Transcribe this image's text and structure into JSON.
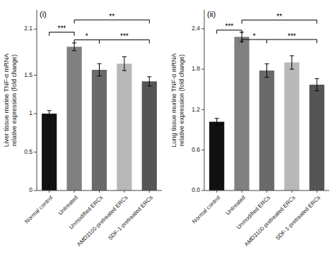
{
  "chart_data": [
    {
      "type": "bar",
      "annotation": "(i)",
      "ylabel": "Liver tissue murine TNF-α mRNA\nrelative expression (fold change)",
      "categories": [
        "Normal control",
        "Untreated",
        "Unmodified ERCs",
        "AMD3100-pretreated ERCs",
        "SDF-1-pretreated ERCs"
      ],
      "values": [
        1.0,
        1.87,
        1.57,
        1.65,
        1.42
      ],
      "errors": [
        0.04,
        0.05,
        0.08,
        0.09,
        0.06
      ],
      "colors": [
        "#111111",
        "#808080",
        "#6a6a6a",
        "#b8b8b8",
        "#555555"
      ],
      "ylim": [
        0,
        2.35
      ],
      "yticks": [
        0,
        0.5,
        1,
        1.5,
        2.1
      ],
      "brackets": [
        {
          "from": "Untreated",
          "to": "SDF-1-pretreated ERCs",
          "y": 2.22,
          "label": "**"
        },
        {
          "from": "Normal control",
          "to": "Untreated",
          "y": 2.06,
          "label": "***"
        },
        {
          "from": "Untreated",
          "to": "Unmodified ERCs",
          "y": 1.96,
          "label": "*"
        },
        {
          "from": "Unmodified ERCs",
          "to": "SDF-1-pretreated ERCs",
          "y": 1.96,
          "label": "***"
        }
      ]
    },
    {
      "type": "bar",
      "annotation": "(ii)",
      "ylabel": "Lung tissue murine TNF-α mRNA\nrelative expression (fold change)",
      "categories": [
        "Normal control",
        "Untreated",
        "Unmodified ERCs",
        "AMD3100-pretreated ERCs",
        "SDF-1-pretreated ERCs"
      ],
      "values": [
        1.02,
        2.28,
        1.78,
        1.9,
        1.57
      ],
      "errors": [
        0.05,
        0.07,
        0.1,
        0.1,
        0.09
      ],
      "colors": [
        "#111111",
        "#808080",
        "#6a6a6a",
        "#b8b8b8",
        "#555555"
      ],
      "ylim": [
        0,
        2.68
      ],
      "yticks": [
        {
          "value": 0,
          "label": "0.0"
        },
        0.6,
        1.2,
        1.8,
        2.4
      ],
      "brackets": [
        {
          "from": "Untreated",
          "to": "SDF-1-pretreated ERCs",
          "y": 2.53,
          "label": "**"
        },
        {
          "from": "Normal control",
          "to": "Untreated",
          "y": 2.38,
          "label": "***"
        },
        {
          "from": "Untreated",
          "to": "Unmodified ERCs",
          "y": 2.24,
          "label": "*"
        },
        {
          "from": "Unmodified ERCs",
          "to": "SDF-1-pretreated ERCs",
          "y": 2.24,
          "label": "***"
        }
      ]
    }
  ]
}
